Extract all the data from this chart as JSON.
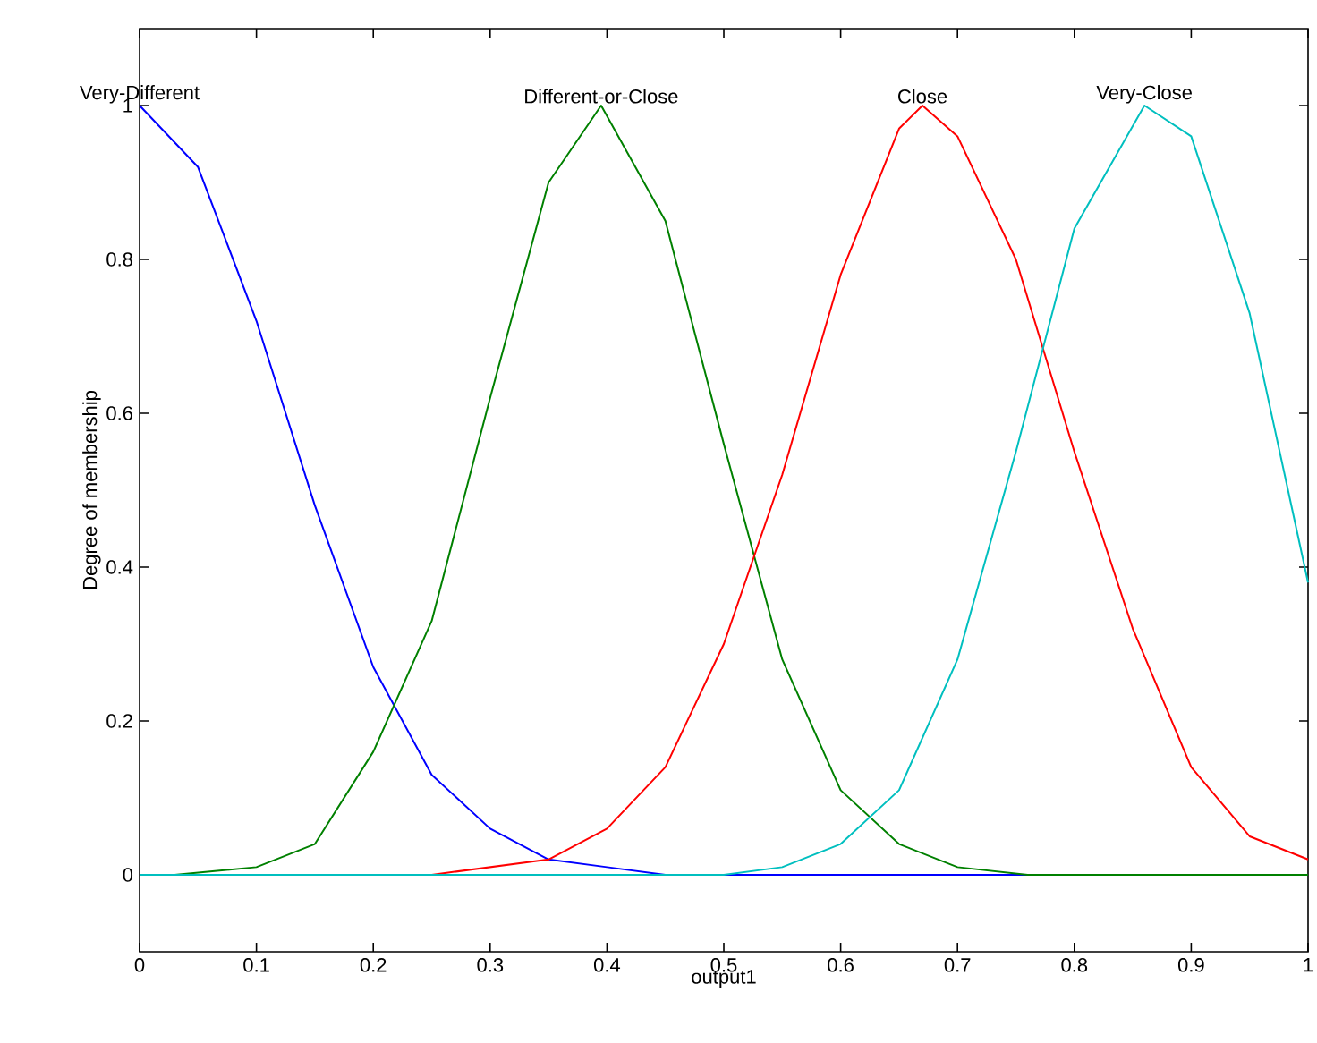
{
  "chart_data": {
    "type": "line",
    "xlabel": "output1",
    "ylabel": "Degree of membership",
    "xlim": [
      0,
      1
    ],
    "ylim": [
      -0.1,
      1.1
    ],
    "xticks": [
      0,
      0.1,
      0.2,
      0.3,
      0.4,
      0.5,
      0.6,
      0.7,
      0.8,
      0.9,
      1
    ],
    "yticks": [
      0,
      0.2,
      0.4,
      0.6,
      0.8,
      1
    ],
    "marker": "none",
    "grid": false,
    "legend": false,
    "series": [
      {
        "name": "Very-Different",
        "color": "#0000ff",
        "x": [
          0,
          0.05,
          0.1,
          0.15,
          0.2,
          0.25,
          0.3,
          0.35,
          0.4,
          0.45,
          0.475,
          0.5,
          0.76
        ],
        "values": [
          1,
          0.92,
          0.72,
          0.48,
          0.27,
          0.13,
          0.06,
          0.02,
          0.01,
          0,
          null,
          0,
          0
        ]
      },
      {
        "name": "Different-or-Close",
        "color": "#008000",
        "x": [
          0.03,
          0.1,
          0.15,
          0.2,
          0.25,
          0.3,
          0.35,
          0.395,
          0.45,
          0.5,
          0.55,
          0.6,
          0.65,
          0.7,
          0.76,
          1
        ],
        "values": [
          0,
          0.01,
          0.04,
          0.16,
          0.33,
          0.62,
          0.9,
          1,
          0.85,
          0.56,
          0.28,
          0.11,
          0.04,
          0.01,
          0,
          0
        ]
      },
      {
        "name": "Close",
        "color": "#ff0000",
        "x": [
          0.25,
          0.3,
          0.35,
          0.4,
          0.45,
          0.5,
          0.55,
          0.6,
          0.65,
          0.67,
          0.7,
          0.75,
          0.8,
          0.85,
          0.9,
          0.95,
          1
        ],
        "values": [
          0,
          0.01,
          0.02,
          0.06,
          0.14,
          0.3,
          0.52,
          0.78,
          0.97,
          1,
          0.96,
          0.8,
          0.55,
          0.32,
          0.14,
          0.05,
          0.02
        ]
      },
      {
        "name": "Very-Close",
        "color": "#00bfbf",
        "x": [
          0,
          0.5,
          0.55,
          0.6,
          0.65,
          0.7,
          0.75,
          0.8,
          0.86,
          0.9,
          0.95,
          1
        ],
        "values": [
          0,
          0,
          0.01,
          0.04,
          0.11,
          0.28,
          0.55,
          0.84,
          1,
          0.96,
          0.73,
          0.38
        ]
      }
    ]
  }
}
